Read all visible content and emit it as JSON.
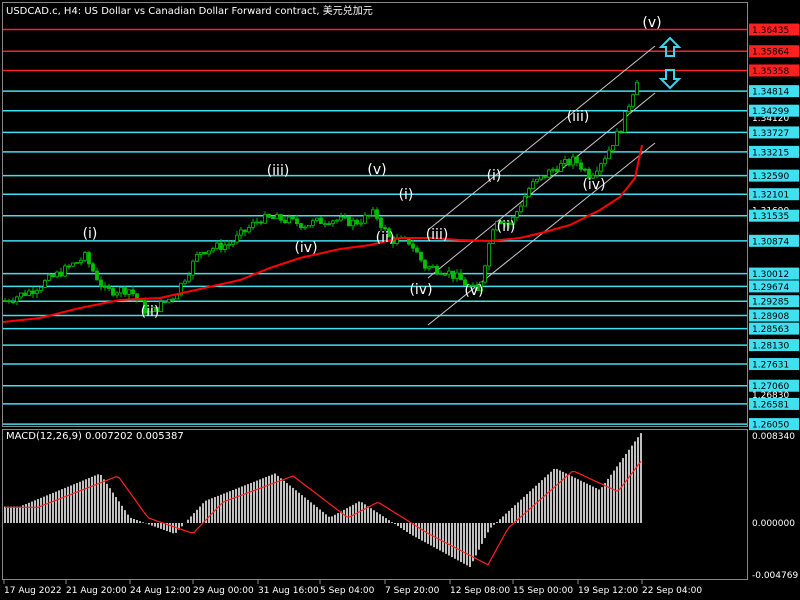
{
  "header": {
    "title": "USDCAD.c, H4: US Dollar vs Canadian Dollar Forward contract, 美元兑加元"
  },
  "macd": {
    "title": "MACD(12,26,9) 0.007202 0.005387",
    "axis_labels": [
      "0.008340",
      "0.000000",
      "-0.004769"
    ]
  },
  "time_axis": [
    "17 Aug 2022",
    "21 Aug 20:00",
    "24 Aug 12:00",
    "29 Aug 00:00",
    "31 Aug 16:00",
    "5 Sep 04:00",
    "7 Sep 20:00",
    "12 Sep 08:00",
    "15 Sep 00:00",
    "19 Sep 12:00",
    "22 Sep 04:00"
  ],
  "price_axis": [
    "1.36435",
    "1.35864",
    "1.35358",
    "1.34814",
    "1.34120",
    "1.34299",
    "1.33727",
    "1.33215",
    "1.32590",
    "1.32101",
    "1.31690",
    "1.31535",
    "1.30874",
    "1.30012",
    "1.29674",
    "1.29285",
    "1.28908",
    "1.28563",
    "1.28130",
    "1.27631",
    "1.27060",
    "1.26830",
    "1.26581",
    "1.26050"
  ],
  "levels": {
    "red": [
      "1.36435",
      "1.35864",
      "1.35358"
    ],
    "cyan": [
      "1.34814",
      "1.34299",
      "1.33727",
      "1.33215",
      "1.32590",
      "1.32101",
      "1.31535",
      "1.30874",
      "1.30012",
      "1.29674",
      "1.29285",
      "1.28908",
      "1.28563",
      "1.28130",
      "1.27631",
      "1.27060",
      "1.26581",
      "1.26050"
    ]
  },
  "wave_labels": [
    "(i)",
    "(ii)",
    "(iii)",
    "(iv)",
    "(v)",
    "(i)",
    "(ii)",
    "(iii)",
    "(iv)",
    "(v)",
    "(i)",
    "(ii)",
    "(iii)",
    "(iv)",
    "(v)"
  ],
  "colors": {
    "background": "#000000",
    "candle": "#00c000",
    "red_level": "#ff2020",
    "cyan_level": "#40e0f0",
    "moving_average": "#ff0000",
    "channel": "#c8c8c8",
    "histogram": "#c0c0c0",
    "signal": "#ff2020",
    "arrow": "#40d0f0"
  },
  "icons": [
    "arrow-up-icon",
    "arrow-down-icon"
  ]
}
